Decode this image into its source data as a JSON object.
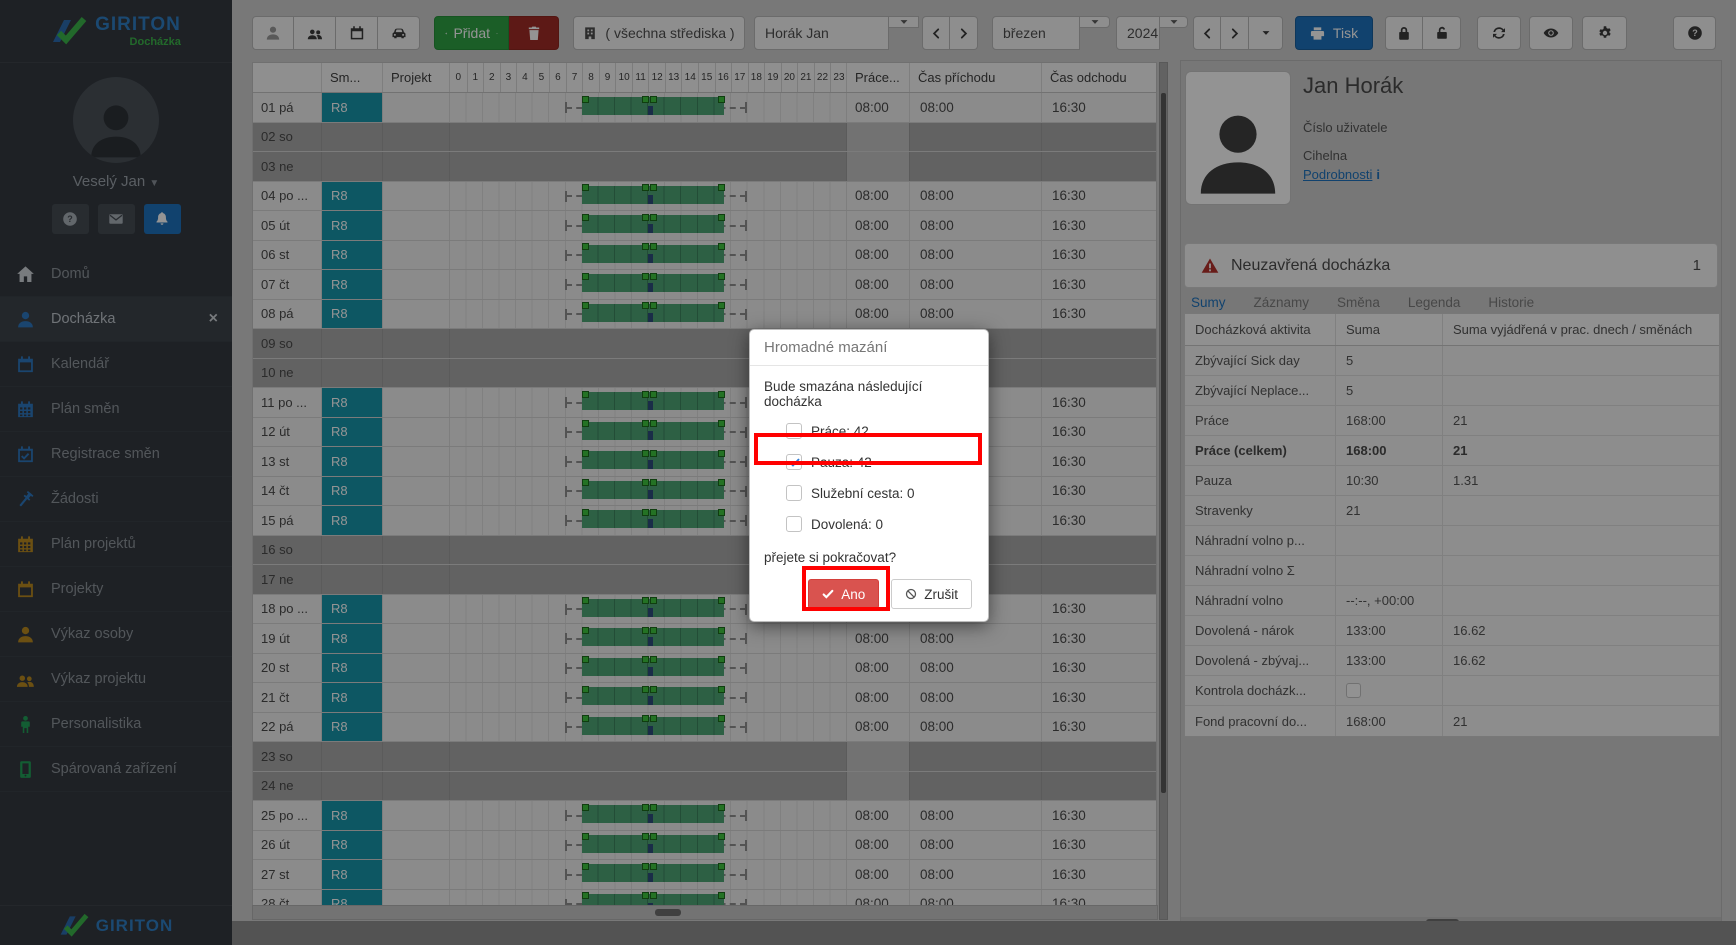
{
  "colors": {
    "accent": "#1e73be",
    "success": "#2fa344",
    "danger": "#a02c26",
    "shift": "#1797ab",
    "bar": "#4fa576",
    "bar-line": "#3d8660",
    "marker": "#3fc53f",
    "pause": "#2d4f7c",
    "highlight": "#ff0000",
    "ano": "#d9534f",
    "warning": "#b3312b",
    "link": "#1e73be"
  },
  "brand": {
    "name": "GIRITON",
    "product": "Docházka"
  },
  "sidebar": {
    "user": "Veselý Jan",
    "quick": [
      {
        "icon": "question-circle"
      },
      {
        "icon": "envelope"
      },
      {
        "icon": "bell",
        "active": true
      }
    ],
    "items": [
      {
        "label": "Domů",
        "icon": "home",
        "color": "#cfd4d9"
      },
      {
        "label": "Docházka",
        "icon": "person",
        "color": "#2e78c0",
        "active": true,
        "closable": true
      },
      {
        "label": "Kalendář",
        "icon": "calendar",
        "color": "#2e78c0"
      },
      {
        "label": "Plán směn",
        "icon": "calendar-grid",
        "color": "#2e78c0"
      },
      {
        "label": "Registrace směn",
        "icon": "calendar-check",
        "color": "#2e78c0"
      },
      {
        "label": "Žádosti",
        "icon": "gavel",
        "color": "#2e78c0"
      },
      {
        "label": "Plán projektů",
        "icon": "calendar-grid",
        "color": "#bb8a20"
      },
      {
        "label": "Projekty",
        "icon": "calendar",
        "color": "#bb8a20"
      },
      {
        "label": "Výkaz osoby",
        "icon": "person",
        "color": "#bb8a20"
      },
      {
        "label": "Výkaz projektu",
        "icon": "people",
        "color": "#bb8a20"
      },
      {
        "label": "Personalistika",
        "icon": "person-standing",
        "color": "#21a058"
      },
      {
        "label": "Spárovaná zařízení",
        "icon": "mobile",
        "color": "#21a058"
      }
    ]
  },
  "toolbar": {
    "view_icons": [
      "person",
      "people",
      "calendar",
      "car"
    ],
    "add_label": "Přidat",
    "strediska_label": "( všechna střediska )",
    "person_value": "Horák Jan",
    "month_value": "březen",
    "year_value": "2024",
    "print_label": "Tisk"
  },
  "timesheet": {
    "columns": {
      "day": "",
      "shift": "Sm...",
      "project": "Projekt",
      "work": "Práce...",
      "arrival": "Čas příchodu",
      "departure": "Čas odchodu"
    },
    "hours": [
      0,
      1,
      2,
      3,
      4,
      5,
      6,
      7,
      8,
      9,
      10,
      11,
      12,
      13,
      14,
      15,
      16,
      17,
      18,
      19,
      20,
      21,
      22,
      23
    ],
    "shift_code": "R8",
    "work_value": "08:00",
    "arrival_value": "08:00",
    "departure_value": "16:30",
    "timeline": {
      "window": [
        7.0,
        17.9
      ],
      "bar": [
        8.0,
        16.55
      ],
      "pause": [
        11.95,
        12.3
      ],
      "markers": [
        8.0,
        11.62,
        12.12,
        16.18
      ]
    },
    "rows": [
      {
        "day": "01 pá",
        "work": true
      },
      {
        "day": "02 so",
        "work": false
      },
      {
        "day": "03 ne",
        "work": false
      },
      {
        "day": "04 po ...",
        "work": true
      },
      {
        "day": "05 út",
        "work": true
      },
      {
        "day": "06 st",
        "work": true
      },
      {
        "day": "07 čt",
        "work": true
      },
      {
        "day": "08 pá",
        "work": true
      },
      {
        "day": "09 so",
        "work": false
      },
      {
        "day": "10 ne",
        "work": false
      },
      {
        "day": "11 po ...",
        "work": true
      },
      {
        "day": "12 út",
        "work": true
      },
      {
        "day": "13 st",
        "work": true
      },
      {
        "day": "14 čt",
        "work": true
      },
      {
        "day": "15 pá",
        "work": true
      },
      {
        "day": "16 so",
        "work": false
      },
      {
        "day": "17 ne",
        "work": false
      },
      {
        "day": "18 po ...",
        "work": true
      },
      {
        "day": "19 út",
        "work": true
      },
      {
        "day": "20 st",
        "work": true
      },
      {
        "day": "21 čt",
        "work": true
      },
      {
        "day": "22 pá",
        "work": true
      },
      {
        "day": "23 so",
        "work": false
      },
      {
        "day": "24 ne",
        "work": false
      },
      {
        "day": "25 po ...",
        "work": true
      },
      {
        "day": "26 út",
        "work": true
      },
      {
        "day": "27 st",
        "work": true
      },
      {
        "day": "28 čt",
        "work": true
      }
    ]
  },
  "modal": {
    "title": "Hromadné mazání",
    "message": "Bude smazána následující docházka",
    "items": [
      {
        "label": "Práce: 42",
        "checked": false
      },
      {
        "label": "Pauza: 42",
        "checked": true
      },
      {
        "label": "Služební cesta: 0",
        "checked": false
      },
      {
        "label": "Dovolená: 0",
        "checked": false
      }
    ],
    "question": "přejete si pokračovat?",
    "confirm": "Ano",
    "cancel": "Zrušit"
  },
  "profile": {
    "name": "Jan Horák",
    "user_number_label": "Číslo uživatele",
    "department": "Cihelna",
    "details_link": "Podrobnosti",
    "details_icon": "i"
  },
  "alert": {
    "label": "Neuzavřená docházka",
    "count": "1"
  },
  "tabs": [
    {
      "label": "Sumy",
      "active": true
    },
    {
      "label": "Záznamy",
      "active": false
    },
    {
      "label": "Směna",
      "active": false
    },
    {
      "label": "Legenda",
      "active": false
    },
    {
      "label": "Historie",
      "active": false
    }
  ],
  "summary": {
    "columns": [
      "Docházková aktivita",
      "Suma",
      "Suma vyjádřená v prac. dnech / směnách"
    ],
    "rows": [
      {
        "label": "Zbývající Sick day",
        "suma": "5",
        "expr": ""
      },
      {
        "label": "Zbývající Neplace...",
        "suma": "5",
        "expr": ""
      },
      {
        "label": "Práce",
        "suma": "168:00",
        "expr": "21"
      },
      {
        "label": "Práce (celkem)",
        "suma": "168:00",
        "expr": "21",
        "bold": true
      },
      {
        "label": "Pauza",
        "suma": "10:30",
        "expr": "1.31"
      },
      {
        "label": "Stravenky",
        "suma": "21",
        "expr": ""
      },
      {
        "label": "Náhradní volno p...",
        "suma": "",
        "expr": ""
      },
      {
        "label": "Náhradní volno Σ",
        "suma": "",
        "expr": ""
      },
      {
        "label": "Náhradní volno",
        "suma": "--:--, +00:00",
        "expr": ""
      },
      {
        "label": "Dovolená - nárok",
        "suma": "133:00",
        "expr": "16.62"
      },
      {
        "label": "Dovolená - zbývaj...",
        "suma": "133:00",
        "expr": "16.62"
      },
      {
        "label": "Kontrola docházk...",
        "suma": "",
        "expr": "",
        "checkbox": true
      },
      {
        "label": "Fond pracovní do...",
        "suma": "168:00",
        "expr": "21"
      }
    ]
  }
}
